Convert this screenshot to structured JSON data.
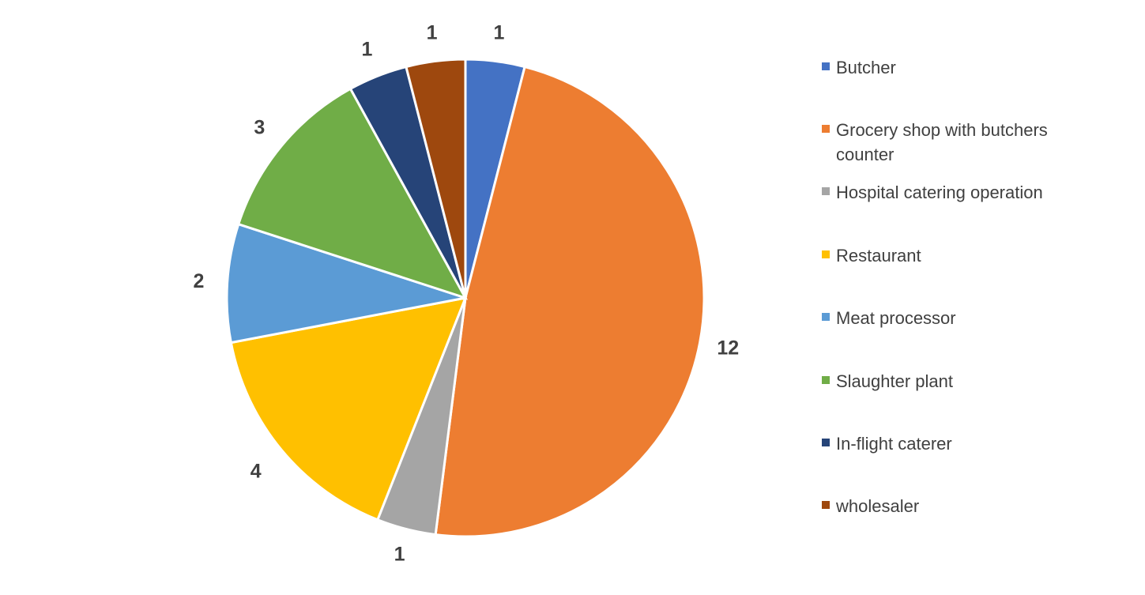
{
  "chart_data": {
    "type": "pie",
    "categories": [
      "Butcher",
      "Grocery shop with butchers counter",
      "Hospital catering operation",
      "Restaurant",
      "Meat processor",
      "Slaughter plant",
      "In-flight caterer",
      "wholesaler"
    ],
    "values": [
      1,
      12,
      1,
      4,
      2,
      3,
      1,
      1
    ],
    "data_labels": [
      "1",
      "12",
      "1",
      "4",
      "2",
      "3",
      "1",
      "1"
    ],
    "colors": [
      "#4472C4",
      "#ED7D31",
      "#A5A5A5",
      "#FFC000",
      "#5B9BD5",
      "#70AD47",
      "#264478",
      "#9E480E"
    ],
    "start_angle_deg": 0,
    "direction": "clockwise",
    "legend_position": "right",
    "title": ""
  }
}
